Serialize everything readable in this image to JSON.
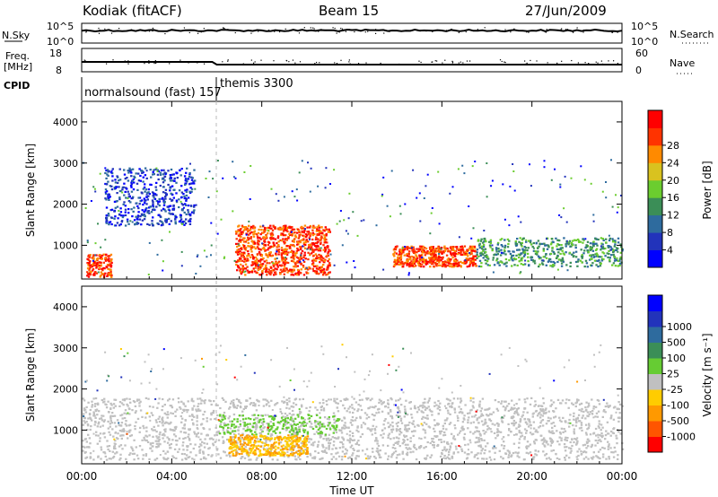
{
  "header": {
    "station": "Kodiak (fitACF)",
    "beam": "Beam 15",
    "date": "27/Jun/2009"
  },
  "nsky_panel": {
    "left_label": "N.Sky",
    "left_ticks": [
      "10^5",
      "10^0"
    ],
    "right_ticks": [
      "10^5",
      "10^0"
    ],
    "right_label": "N.Search"
  },
  "freq_panel": {
    "left_label_1": "Freq.",
    "left_label_2": "[MHz]",
    "left_ticks": [
      "18",
      "8"
    ],
    "right_ticks": [
      "60",
      "0"
    ],
    "right_label": "Nave"
  },
  "cpid": {
    "label": "CPID",
    "segments": [
      {
        "start_hour": 0,
        "text": "normalsound (fast) 157"
      },
      {
        "start_hour": 6,
        "text": "themis 3300"
      }
    ]
  },
  "colors": {
    "power_scale": [
      "#0000ff",
      "#2233bb",
      "#2e6b9e",
      "#3b8e57",
      "#6bcd2f",
      "#d9c21f",
      "#ff8a00",
      "#ff3300",
      "#ff0000"
    ],
    "velocity_scale": [
      "#0000ff",
      "#2233bb",
      "#2e6b9e",
      "#3b8e57",
      "#66cc33",
      "#c0c0c0",
      "#ffcc00",
      "#ff9900",
      "#ff5500",
      "#ff0000"
    ]
  },
  "chart_data": [
    {
      "type": "heatmap",
      "title": "",
      "xlabel": "",
      "ylabel": "Slant Range [km]",
      "xlim": [
        "00:00",
        "24:00"
      ],
      "ylim": [
        180,
        4500
      ],
      "yticks": [
        "1000",
        "2000",
        "3000",
        "4000"
      ],
      "colorbar_label": "Power [dB]",
      "colorbar_ticks": [
        "4",
        "8",
        "12",
        "16",
        "20",
        "24",
        "28"
      ],
      "regions": [
        {
          "label": "blue scatter",
          "hours": [
            1.0,
            5.0
          ],
          "range_km": [
            1500,
            2900
          ],
          "level": "4-12 dB"
        },
        {
          "label": "red near-range",
          "hours": [
            0.2,
            1.3
          ],
          "range_km": [
            250,
            800
          ],
          "level": "28 dB"
        },
        {
          "label": "red daytime band",
          "hours": [
            6.8,
            11.0
          ],
          "range_km": [
            300,
            1500
          ],
          "level": "24-30 dB"
        },
        {
          "label": "red afternoon band",
          "hours": [
            13.8,
            17.5
          ],
          "range_km": [
            500,
            1000
          ],
          "level": "24-30 dB"
        },
        {
          "label": "evening band",
          "hours": [
            17.5,
            24.0
          ],
          "range_km": [
            500,
            1200
          ],
          "level": "8-16 dB"
        }
      ]
    },
    {
      "type": "heatmap",
      "title": "",
      "xlabel": "Time UT",
      "ylabel": "Slant Range [km]",
      "xticks": [
        "00:00",
        "04:00",
        "08:00",
        "12:00",
        "16:00",
        "20:00",
        "00:00"
      ],
      "xlim": [
        "00:00",
        "24:00"
      ],
      "ylim": [
        180,
        4500
      ],
      "yticks": [
        "1000",
        "2000",
        "3000",
        "4000"
      ],
      "colorbar_label": "Velocity [m s⁻¹]",
      "colorbar_ticks": [
        "1000",
        "500",
        "100",
        "25",
        "-25",
        "-100",
        "-500",
        "-1000"
      ],
      "regions": [
        {
          "label": "ground scatter",
          "hours": [
            0.0,
            24.0
          ],
          "range_km": [
            300,
            1800
          ],
          "level": "-25 to 25"
        },
        {
          "label": "negative velocity patch",
          "hours": [
            6.5,
            10.0
          ],
          "range_km": [
            400,
            900
          ],
          "level": "-100 to -25"
        },
        {
          "label": "positive velocity patch",
          "hours": [
            6.0,
            11.5
          ],
          "range_km": [
            900,
            1400
          ],
          "level": "25 to 100"
        }
      ]
    }
  ]
}
